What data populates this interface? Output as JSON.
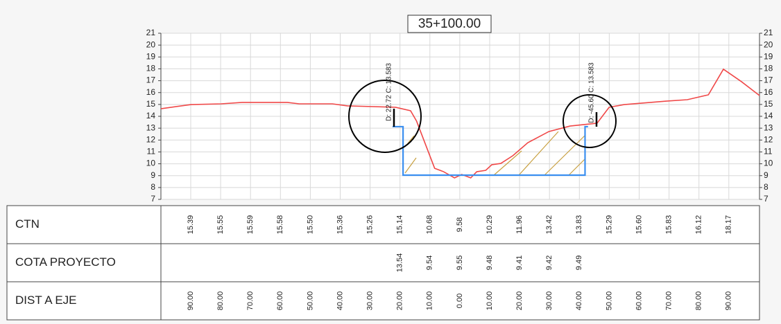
{
  "chart_data": {
    "type": "line",
    "title": "35+100.00",
    "xlim": [
      -99,
      100
    ],
    "ylim": [
      7,
      21
    ],
    "yticks": [
      7,
      8,
      9,
      10,
      11,
      12,
      13,
      14,
      15,
      16,
      17,
      18,
      19,
      20,
      21
    ],
    "grid": true,
    "series": [
      {
        "color": "#f04848",
        "x": [
          -99,
          -89,
          -79,
          -72,
          -57,
          -53,
          -42,
          -37,
          -21,
          -16,
          -14,
          -8,
          -5,
          -1.4,
          1,
          4,
          6,
          9,
          11,
          14,
          18,
          23,
          30,
          37,
          46,
          50,
          55,
          69,
          76,
          83,
          88,
          94,
          100
        ],
        "values": [
          14.64,
          14.99,
          15.05,
          15.17,
          15.17,
          15.05,
          15.05,
          14.88,
          14.76,
          14.47,
          13.59,
          9.62,
          9.33,
          8.81,
          9.1,
          8.81,
          9.33,
          9.45,
          9.92,
          10.03,
          10.68,
          11.78,
          12.72,
          13.18,
          13.42,
          14.76,
          14.99,
          15.28,
          15.4,
          15.81,
          17.97,
          16.92,
          15.75
        ]
      },
      {
        "color": "#3b8ff0",
        "x": [
          -22,
          -18.5,
          -18.5,
          42,
          42,
          43
        ],
        "values": [
          13.13,
          13.13,
          9.04,
          9.04,
          13.13,
          13.13
        ]
      }
    ],
    "annotations": [
      "D: 22.72 C: 13.583",
      "D: -45.60 C: 13.583"
    ]
  },
  "table": {
    "rows": [
      {
        "label": "CTN",
        "cells": [
          "15.39",
          "15.55",
          "15.59",
          "15.58",
          "15.50",
          "15.36",
          "15.26",
          "15.14",
          "10.68",
          "9.58",
          "10.29",
          "11.96",
          "13.42",
          "13.83",
          "15.29",
          "15.60",
          "15.83",
          "16.12",
          "18.17"
        ]
      },
      {
        "label": "COTA PROYECTO",
        "cells": [
          null,
          null,
          null,
          null,
          null,
          null,
          null,
          "13.54",
          "9.54",
          "9.55",
          "9.48",
          "9.41",
          "9.42",
          "9.49",
          null,
          null,
          null,
          null,
          null
        ]
      },
      {
        "label": "DIST A EJE",
        "cells": [
          "90.00",
          "80.00",
          "70.00",
          "60.00",
          "50.00",
          "40.00",
          "30.00",
          "20.00",
          "10.00",
          "0.00",
          "10.00",
          "20.00",
          "30.00",
          "40.00",
          "50.00",
          "60.00",
          "70.00",
          "80.00",
          "90.00"
        ]
      }
    ]
  }
}
